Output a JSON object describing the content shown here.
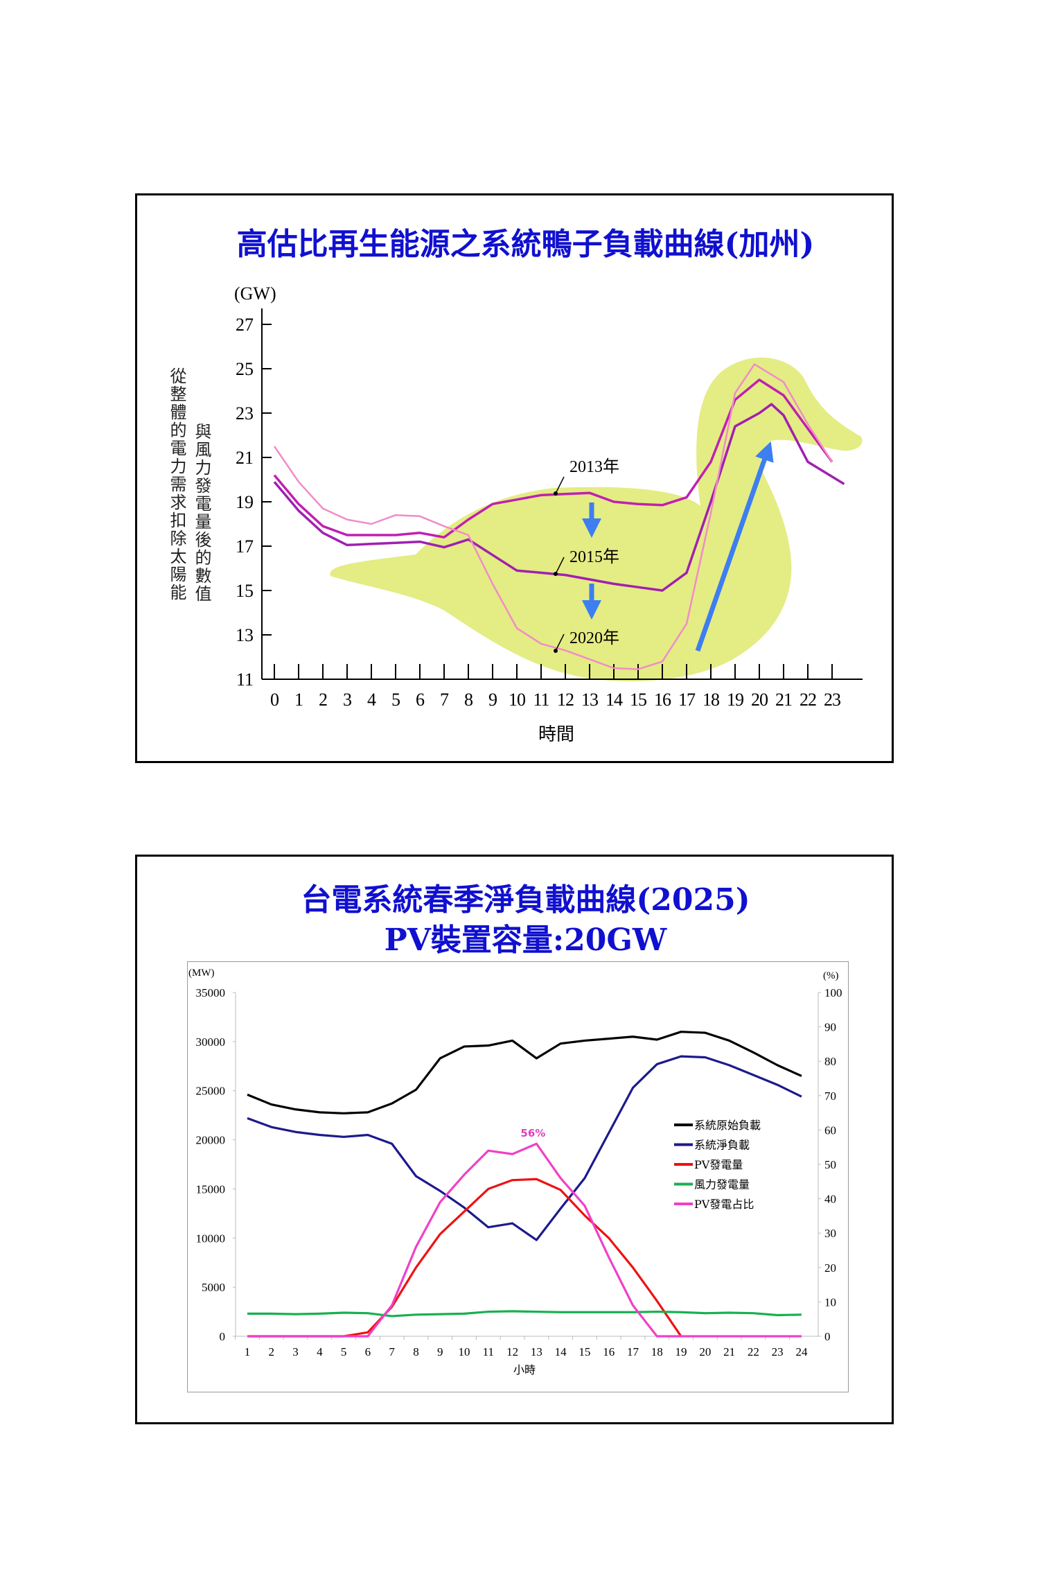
{
  "chart_data": [
    {
      "type": "line",
      "title": "高估比再生能源之系統鴨子負載曲線(加州)",
      "ylabel_unit": "(GW)",
      "ylabel_lines": [
        "從整體的電力需求扣除太陽能",
        "與風力發電量後的數值"
      ],
      "xlabel": "時間",
      "ylim": [
        11,
        27
      ],
      "yticks": [
        11,
        13,
        15,
        17,
        19,
        21,
        23,
        25,
        27
      ],
      "xticks": [
        0,
        1,
        2,
        3,
        4,
        5,
        6,
        7,
        8,
        9,
        10,
        11,
        12,
        13,
        14,
        15,
        16,
        17,
        18,
        19,
        20,
        21,
        22,
        23
      ],
      "series": [
        {
          "name": "2013年",
          "color": "#c020b0",
          "x": [
            0,
            1,
            2,
            3,
            4,
            5,
            6,
            7,
            8,
            9,
            10,
            11,
            12,
            13,
            14,
            15,
            16,
            17,
            18,
            19,
            20,
            21,
            22,
            23
          ],
          "values": [
            20.2,
            18.9,
            17.9,
            17.5,
            17.5,
            17.5,
            17.6,
            17.4,
            18.2,
            18.9,
            19.1,
            19.3,
            19.35,
            19.4,
            19.0,
            18.9,
            18.85,
            19.2,
            20.8,
            23.6,
            24.5,
            23.8,
            22.3,
            20.8
          ]
        },
        {
          "name": "2015年",
          "color": "#a020b0",
          "x": [
            0,
            1,
            2,
            3,
            4,
            5,
            6,
            7,
            8,
            9,
            10,
            11,
            12,
            13,
            14,
            15,
            16,
            17,
            18,
            19,
            20,
            20.5,
            21,
            22,
            23.5
          ],
          "values": [
            19.9,
            18.6,
            17.6,
            17.05,
            17.1,
            17.15,
            17.2,
            16.95,
            17.3,
            16.6,
            15.9,
            15.8,
            15.7,
            15.5,
            15.3,
            15.15,
            15.0,
            15.8,
            19.0,
            22.4,
            23.0,
            23.4,
            22.9,
            20.8,
            19.8
          ]
        },
        {
          "name": "2020年",
          "color": "#f08cc8",
          "x": [
            0,
            1,
            2,
            3,
            4,
            5,
            6,
            7,
            8,
            9,
            10,
            11,
            12,
            13,
            14,
            15,
            16,
            17,
            18,
            19,
            19.8,
            21,
            22,
            23
          ],
          "values": [
            21.5,
            19.9,
            18.7,
            18.2,
            18.0,
            18.4,
            18.35,
            17.9,
            17.5,
            15.3,
            13.3,
            12.6,
            12.3,
            11.9,
            11.5,
            11.45,
            11.8,
            13.5,
            18.5,
            23.9,
            25.2,
            24.4,
            22.5,
            20.8
          ]
        }
      ],
      "annotations": [
        "2013年",
        "2015年",
        "2020年"
      ],
      "duck_color": "#e4ec84",
      "arrow_color": "#3d7ef0"
    },
    {
      "type": "line",
      "title": "台電系統春季淨負載曲線(2025)",
      "subtitle": "PV裝置容量:20GW",
      "ylabel_left": "(MW)",
      "ylabel_right": "(%)",
      "xlabel": "小時",
      "ylim_left": [
        0,
        35000
      ],
      "ylim_right": [
        0,
        100
      ],
      "yticks_left": [
        0,
        5000,
        10000,
        15000,
        20000,
        25000,
        30000,
        35000
      ],
      "yticks_right": [
        0,
        10,
        20,
        30,
        40,
        50,
        60,
        70,
        80,
        90,
        100
      ],
      "x": [
        1,
        2,
        3,
        4,
        5,
        6,
        7,
        8,
        9,
        10,
        11,
        12,
        13,
        14,
        15,
        16,
        17,
        18,
        19,
        20,
        21,
        22,
        23,
        24
      ],
      "legend_position": "right",
      "series": [
        {
          "name": "系統原始負載",
          "axis": "left",
          "color": "#000000",
          "values": [
            24600,
            23600,
            23100,
            22800,
            22700,
            22800,
            23700,
            25100,
            28300,
            29500,
            29600,
            30100,
            28300,
            29800,
            30100,
            30300,
            30500,
            30200,
            31000,
            30900,
            30100,
            28900,
            27600,
            26500
          ]
        },
        {
          "name": "系統淨負載",
          "axis": "left",
          "color": "#1c1a8c",
          "values": [
            22200,
            21300,
            20800,
            20500,
            20300,
            20500,
            19600,
            16300,
            14800,
            13100,
            11100,
            11500,
            9800,
            13000,
            16100,
            20700,
            25300,
            27700,
            28500,
            28400,
            27600,
            26600,
            25600,
            24400
          ]
        },
        {
          "name": "PV發電量",
          "axis": "left",
          "color": "#ee1111",
          "values": [
            0,
            0,
            0,
            0,
            0,
            400,
            3000,
            7000,
            10400,
            12700,
            15000,
            15900,
            16000,
            14900,
            12300,
            10000,
            7000,
            3600,
            0,
            null,
            null,
            null,
            null,
            null
          ]
        },
        {
          "name": "風力發電量",
          "axis": "left",
          "color": "#18b050",
          "values": [
            2300,
            2300,
            2250,
            2300,
            2400,
            2350,
            2050,
            2200,
            2250,
            2300,
            2500,
            2550,
            2500,
            2450,
            2450,
            2450,
            2450,
            2500,
            2450,
            2350,
            2400,
            2350,
            2150,
            2200
          ]
        },
        {
          "name": "PV發電占比",
          "axis": "right",
          "color": "#f040c8",
          "values": [
            0,
            0,
            0,
            0,
            0,
            0,
            9,
            26,
            39,
            47,
            54,
            53,
            56,
            46,
            38,
            23,
            9,
            0,
            0,
            0,
            0,
            0,
            0,
            0
          ]
        }
      ],
      "annotation": "56%"
    }
  ]
}
